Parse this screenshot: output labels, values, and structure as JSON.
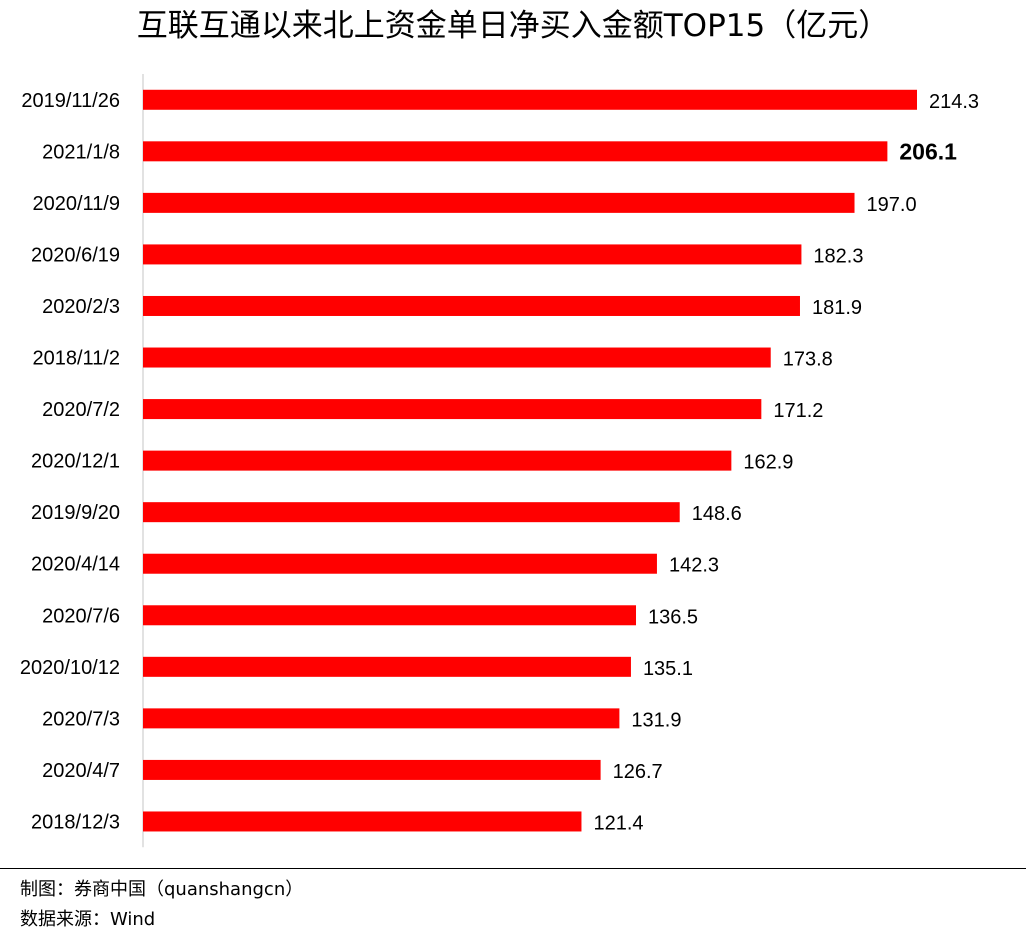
{
  "title": "互联互通以来北上资金单日净买入金额TOP15（亿元）",
  "footer": {
    "credit": "制图：券商中国（quanshangcn）",
    "source": "数据来源：Wind"
  },
  "colors": {
    "bar": "#ff0000",
    "axis": "#d9d9d9"
  },
  "chart_data": {
    "type": "bar",
    "orientation": "horizontal",
    "title": "互联互通以来北上资金单日净买入金额TOP15（亿元）",
    "categories": [
      "2019/11/26",
      "2021/1/8",
      "2020/11/9",
      "2020/6/19",
      "2020/2/3",
      "2018/11/2",
      "2020/7/2",
      "2020/12/1",
      "2019/9/20",
      "2020/4/14",
      "2020/7/6",
      "2020/10/12",
      "2020/7/3",
      "2020/4/7",
      "2018/12/3"
    ],
    "values": [
      214.3,
      206.1,
      197.0,
      182.3,
      181.9,
      173.8,
      171.2,
      162.9,
      148.6,
      142.3,
      136.5,
      135.1,
      131.9,
      126.7,
      121.4
    ],
    "value_labels": [
      "214.3",
      "206.1",
      "197.0",
      "182.3",
      "181.9",
      "173.8",
      "171.2",
      "162.9",
      "148.6",
      "142.3",
      "136.5",
      "135.1",
      "131.9",
      "126.7",
      "121.4"
    ],
    "highlighted_category": "2021/1/8",
    "xlim": [
      0,
      214.3
    ],
    "grid": false,
    "legend": "none"
  }
}
